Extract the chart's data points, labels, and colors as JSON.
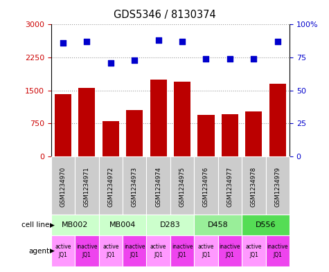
{
  "title": "GDS5346 / 8130374",
  "samples": [
    "GSM1234970",
    "GSM1234971",
    "GSM1234972",
    "GSM1234973",
    "GSM1234974",
    "GSM1234975",
    "GSM1234976",
    "GSM1234977",
    "GSM1234978",
    "GSM1234979"
  ],
  "counts": [
    1420,
    1560,
    800,
    1050,
    1750,
    1700,
    950,
    960,
    1030,
    1660
  ],
  "percentiles": [
    86,
    87,
    71,
    73,
    88,
    87,
    74,
    74,
    74,
    87
  ],
  "ylim_left": [
    0,
    3000
  ],
  "ylim_right": [
    0,
    100
  ],
  "yticks_left": [
    0,
    750,
    1500,
    2250,
    3000
  ],
  "yticks_right": [
    0,
    25,
    50,
    75,
    100
  ],
  "yticklabels_right": [
    "0",
    "25",
    "50",
    "75",
    "100%"
  ],
  "cell_lines": [
    {
      "label": "MB002",
      "color": "#ccffcc",
      "span": [
        0,
        2
      ]
    },
    {
      "label": "MB004",
      "color": "#ccffcc",
      "span": [
        2,
        4
      ]
    },
    {
      "label": "D283",
      "color": "#ccffcc",
      "span": [
        4,
        6
      ]
    },
    {
      "label": "D458",
      "color": "#99ee99",
      "span": [
        6,
        8
      ]
    },
    {
      "label": "D556",
      "color": "#55dd55",
      "span": [
        8,
        10
      ]
    }
  ],
  "agents": [
    {
      "label": "active\nJQ1",
      "color": "#ff99ff"
    },
    {
      "label": "inactive\nJQ1",
      "color": "#ee44ee"
    },
    {
      "label": "active\nJQ1",
      "color": "#ff99ff"
    },
    {
      "label": "inactive\nJQ1",
      "color": "#ee44ee"
    },
    {
      "label": "active\nJQ1",
      "color": "#ff99ff"
    },
    {
      "label": "inactive\nJQ1",
      "color": "#ee44ee"
    },
    {
      "label": "active\nJQ1",
      "color": "#ff99ff"
    },
    {
      "label": "inactive\nJQ1",
      "color": "#ee44ee"
    },
    {
      "label": "active\nJQ1",
      "color": "#ff99ff"
    },
    {
      "label": "inactive\nJQ1",
      "color": "#ee44ee"
    }
  ],
  "bar_color": "#bb0000",
  "dot_color": "#0000cc",
  "bar_width": 0.7,
  "grid_color": "#999999",
  "bg_color": "#ffffff",
  "left_axis_color": "#cc0000",
  "right_axis_color": "#0000cc",
  "tick_area_bg": "#cccccc",
  "legend_count_color": "#cc0000",
  "legend_pct_color": "#0000cc"
}
